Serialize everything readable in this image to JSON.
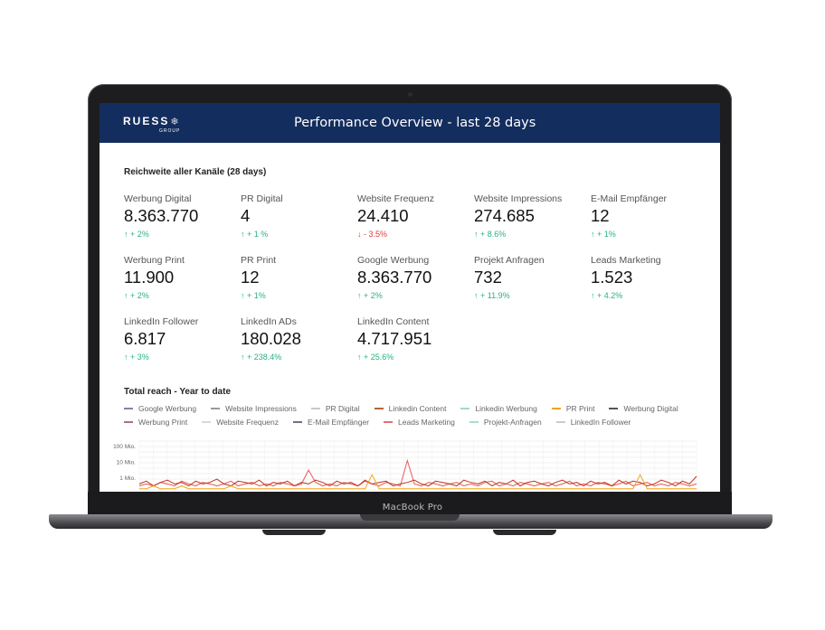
{
  "device": {
    "label": "MacBook Pro"
  },
  "header": {
    "logo_text": "RUESS",
    "logo_sub": "GROUP",
    "title": "Performance Overview - last 28 days"
  },
  "kpi_section": {
    "title": "Reichweite aller Kanäle (28 days)",
    "items": [
      {
        "label": "Werbung Digital",
        "value": "8.363.770",
        "change": "↑ + 2%",
        "trend": "up"
      },
      {
        "label": "PR Digital",
        "value": "4",
        "change": "↑ + 1 %",
        "trend": "up"
      },
      {
        "label": "Website Frequenz",
        "value": "24.410",
        "change": "↓ - 3.5%",
        "trend": "down"
      },
      {
        "label": "Website Impressions",
        "value": "274.685",
        "change": "↑ + 8.6%",
        "trend": "up"
      },
      {
        "label": "E-Mail Empfänger",
        "value": "12",
        "change": "↑ + 1%",
        "trend": "up"
      },
      {
        "label": "Werbung Print",
        "value": "11.900",
        "change": "↑ + 2%",
        "trend": "up"
      },
      {
        "label": "PR Print",
        "value": "12",
        "change": "↑ + 1%",
        "trend": "up"
      },
      {
        "label": "Google Werbung",
        "value": "8.363.770",
        "change": "↑ + 2%",
        "trend": "up"
      },
      {
        "label": "Projekt Anfragen",
        "value": "732",
        "change": "↑ + 11.9%",
        "trend": "up"
      },
      {
        "label": "Leads Marketing",
        "value": "1.523",
        "change": "↑ + 4.2%",
        "trend": "up"
      },
      {
        "label": "LinkedIn Follower",
        "value": "6.817",
        "change": "↑ + 3%",
        "trend": "up"
      },
      {
        "label": "LinkedIn ADs",
        "value": "180.028",
        "change": "↑ + 238.4%",
        "trend": "up"
      },
      {
        "label": "LinkedIn Content",
        "value": "4.717.951",
        "change": "↑ + 25.6%",
        "trend": "up"
      }
    ]
  },
  "chart_section": {
    "title": "Total reach - Year to date",
    "legend": [
      {
        "name": "Google Werbung",
        "color": "#8a7fa3"
      },
      {
        "name": "Website Impressions",
        "color": "#9a9a9a"
      },
      {
        "name": "PR Digital",
        "color": "#c8c8c8"
      },
      {
        "name": "Linkedin Content",
        "color": "#b5653c"
      },
      {
        "name": "Linkedin Werbung",
        "color": "#9fd9d0"
      },
      {
        "name": "PR Print",
        "color": "#f2a51f"
      },
      {
        "name": "Werbung Digital",
        "color": "#555555"
      },
      {
        "name": "Werbung Print",
        "color": "#b36b8c"
      },
      {
        "name": "Website Frequenz",
        "color": "#d8d8d8"
      },
      {
        "name": "E-Mail Empfänger",
        "color": "#7a6a8a"
      },
      {
        "name": "Leads Marketing",
        "color": "#e07070"
      },
      {
        "name": "Projekt-Anfragen",
        "color": "#a8dcd4"
      },
      {
        "name": "LinkedIn Follower",
        "color": "#cccccc"
      }
    ]
  },
  "chart_data": {
    "type": "line",
    "title": "Total reach - Year to date",
    "yscale": "log",
    "yticks": [
      "100 Mio.",
      "10 Mio.",
      "1 Mio."
    ],
    "ylim": [
      100000,
      200000000
    ],
    "grid": true,
    "legend_position": "top",
    "series": [
      {
        "name": "Leads Marketing",
        "color": "#e85a5a",
        "values": [
          0.3,
          0.4,
          0.3,
          0.5,
          0.4,
          0.3,
          0.6,
          0.4,
          0.3,
          0.5,
          0.4,
          0.3,
          0.4,
          0.6,
          0.3,
          0.4,
          0.5,
          0.3,
          0.4,
          0.3,
          0.5,
          0.4,
          0.3,
          0.4,
          3,
          0.5,
          0.3,
          0.4,
          0.3,
          0.5,
          0.4,
          0.3,
          0.6,
          0.4,
          0.3,
          0.5,
          0.4,
          0.3,
          12,
          0.4,
          0.3,
          0.5,
          0.4,
          0.3,
          0.4,
          0.5,
          0.3,
          0.4,
          0.3,
          0.5,
          0.6,
          0.3,
          0.4,
          0.3,
          0.5,
          0.4,
          0.3,
          0.4,
          0.5,
          0.3,
          0.4,
          0.6,
          0.3,
          0.4,
          0.3,
          0.5,
          0.4,
          0.3,
          0.4,
          0.6,
          0.3,
          0.4,
          0.5,
          0.3,
          0.4,
          0.3,
          0.5,
          0.4,
          0.3,
          0.4
        ]
      },
      {
        "name": "Linkedin Content",
        "color": "#c0341d",
        "values": [
          0.4,
          0.6,
          0.3,
          0.5,
          0.7,
          0.4,
          0.5,
          0.3,
          0.6,
          0.4,
          0.5,
          0.8,
          0.4,
          0.3,
          0.6,
          0.5,
          0.4,
          0.7,
          0.3,
          0.5,
          0.4,
          0.6,
          0.3,
          0.5,
          0.4,
          0.7,
          0.5,
          0.3,
          0.6,
          0.4,
          0.5,
          0.3,
          0.7,
          0.4,
          0.5,
          0.6,
          0.3,
          0.4,
          0.5,
          0.7,
          0.4,
          0.3,
          0.6,
          0.5,
          0.4,
          0.3,
          0.7,
          0.5,
          0.4,
          0.6,
          0.3,
          0.5,
          0.4,
          0.7,
          0.3,
          0.5,
          0.6,
          0.4,
          0.3,
          0.5,
          0.7,
          0.4,
          0.5,
          0.3,
          0.6,
          0.4,
          0.5,
          0.3,
          0.7,
          0.4,
          0.6,
          0.5,
          0.3,
          0.4,
          0.7,
          0.5,
          0.3,
          0.6,
          0.4,
          1.2
        ]
      },
      {
        "name": "PR Print",
        "color": "#f2a51f",
        "values": [
          0.2,
          0.2,
          0.3,
          0.2,
          0.2,
          0.2,
          0.3,
          0.2,
          0.2,
          0.2,
          0.2,
          0.2,
          0.2,
          0.3,
          0.2,
          0.2,
          0.2,
          0.2,
          0.2,
          0.2,
          0.2,
          0.2,
          0.2,
          0.2,
          0.2,
          0.2,
          0.2,
          0.2,
          0.2,
          0.2,
          0.2,
          0.2,
          0.2,
          1.5,
          0.2,
          0.2,
          0.2,
          0.2,
          0.2,
          0.2,
          0.2,
          0.2,
          0.2,
          0.2,
          0.2,
          0.2,
          0.2,
          0.2,
          0.2,
          0.2,
          0.2,
          0.2,
          0.2,
          0.2,
          0.2,
          0.2,
          0.2,
          0.2,
          0.2,
          0.2,
          0.2,
          0.2,
          0.2,
          0.2,
          0.2,
          0.2,
          0.2,
          0.2,
          0.2,
          0.2,
          0.2,
          1.5,
          0.2,
          0.2,
          0.2,
          0.2,
          0.2,
          0.2,
          0.2,
          0.2
        ]
      }
    ]
  }
}
